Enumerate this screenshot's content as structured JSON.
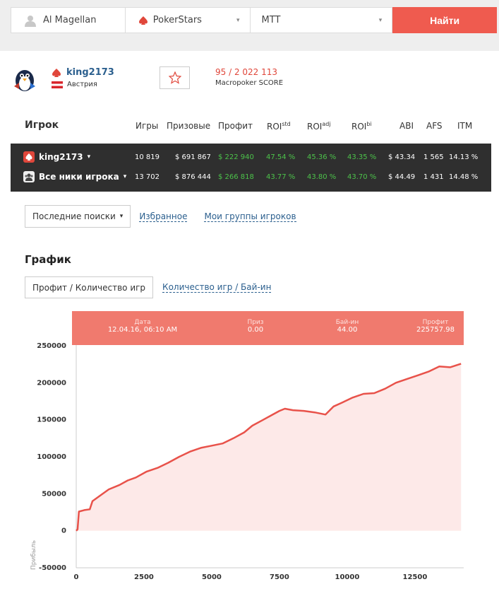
{
  "search": {
    "user_value": "Al Magellan",
    "room_value": "PokerStars",
    "type_value": "MTT",
    "find_label": "Найти"
  },
  "profile": {
    "name": "king2173",
    "country": "Австрия",
    "score": "95 / 2 022 113",
    "score_label": "Macropoker SCORE"
  },
  "table": {
    "headers": {
      "player": "Игрок",
      "games": "Игры",
      "prizes": "Призовые",
      "profit": "Профит",
      "roi_std": "ROI",
      "roi_std_sup": "std",
      "roi_adj": "ROI",
      "roi_adj_sup": "adj",
      "roi_bi": "ROI",
      "roi_bi_sup": "bi",
      "abi": "ABI",
      "afs": "AFS",
      "itm": "ITM"
    },
    "rows": [
      {
        "name": "king2173",
        "games": "10 819",
        "prizes": "$ 691 867",
        "profit": "$ 222 940",
        "roi_std": "47.54 %",
        "roi_adj": "45.36 %",
        "roi_bi": "43.35 %",
        "abi": "$ 43.34",
        "afs": "1 565",
        "itm": "14.13 %"
      },
      {
        "name": "Все ники игрока",
        "games": "13 702",
        "prizes": "$ 876 444",
        "profit": "$ 266 818",
        "roi_std": "43.77 %",
        "roi_adj": "43.80 %",
        "roi_bi": "43.70 %",
        "abi": "$ 44.49",
        "afs": "1 431",
        "itm": "14.48 %"
      }
    ]
  },
  "links": {
    "recent": "Последние поиски",
    "favorites": "Избранное",
    "groups": "Мои группы игроков"
  },
  "graph": {
    "title": "График",
    "tab_active": "Профит / Количество игр",
    "tab_other": "Количество игр / Бай-ин"
  },
  "tooltip": {
    "date_label": "Дата",
    "date_value": "12.04.16, 06:10 AM",
    "prize_label": "Приз",
    "prize_value": "0.00",
    "buyin_label": "Бай-ин",
    "buyin_value": "44.00",
    "profit_label": "Профит",
    "profit_value": "225757.98"
  },
  "colors": {
    "accent": "#ef5b4f",
    "line": "#e8524a",
    "fill": "#fde9e8",
    "green": "#4cc24a"
  },
  "chart_data": {
    "type": "area",
    "ylabel": "Прибыль",
    "xlim": [
      0,
      14300
    ],
    "ylim": [
      -50000,
      250000
    ],
    "x_ticks": [
      0,
      2500,
      5000,
      7500,
      10000,
      12500
    ],
    "y_ticks": [
      -50000,
      0,
      50000,
      100000,
      150000,
      200000,
      250000
    ],
    "x": [
      0,
      50,
      100,
      300,
      500,
      600,
      900,
      1200,
      1600,
      1900,
      2200,
      2600,
      3000,
      3400,
      3800,
      4200,
      4600,
      5000,
      5400,
      5800,
      6200,
      6500,
      6900,
      7200,
      7500,
      7700,
      8000,
      8400,
      8800,
      9200,
      9500,
      9800,
      10200,
      10600,
      11000,
      11400,
      11800,
      12200,
      12600,
      13000,
      13400,
      13800,
      14200
    ],
    "y": [
      0,
      2000,
      26000,
      28000,
      29000,
      40000,
      48000,
      56000,
      62000,
      68000,
      72000,
      80000,
      85000,
      92000,
      100000,
      107000,
      112000,
      115000,
      118000,
      125000,
      133000,
      142000,
      150000,
      156000,
      162000,
      165000,
      163000,
      162000,
      160000,
      157000,
      168000,
      173000,
      180000,
      185000,
      186000,
      192000,
      200000,
      205000,
      210000,
      215000,
      222000,
      221000,
      225758
    ]
  }
}
